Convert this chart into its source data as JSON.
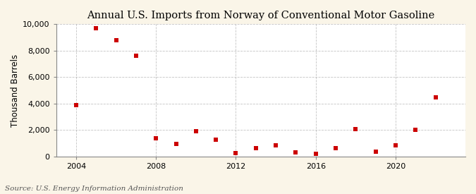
{
  "title": "Annual U.S. Imports from Norway of Conventional Motor Gasoline",
  "ylabel": "Thousand Barrels",
  "source": "Source: U.S. Energy Information Administration",
  "years": [
    2004,
    2005,
    2006,
    2007,
    2008,
    2009,
    2010,
    2011,
    2012,
    2013,
    2014,
    2015,
    2016,
    2017,
    2018,
    2019,
    2020,
    2021,
    2022
  ],
  "values": [
    3900,
    9700,
    8800,
    7600,
    1350,
    950,
    1900,
    1250,
    250,
    650,
    850,
    300,
    200,
    600,
    2050,
    350,
    850,
    2000,
    4450
  ],
  "marker_color": "#cc0000",
  "marker": "s",
  "marker_size": 4,
  "background_color": "#faf5e8",
  "plot_bg_color": "#ffffff",
  "grid_color": "#aaaaaa",
  "ylim": [
    0,
    10000
  ],
  "yticks": [
    0,
    2000,
    4000,
    6000,
    8000,
    10000
  ],
  "xlim": [
    2003.0,
    2023.5
  ],
  "xticks": [
    2004,
    2008,
    2012,
    2016,
    2020
  ],
  "title_fontsize": 10.5,
  "label_fontsize": 8.5,
  "tick_fontsize": 8,
  "source_fontsize": 7.5
}
